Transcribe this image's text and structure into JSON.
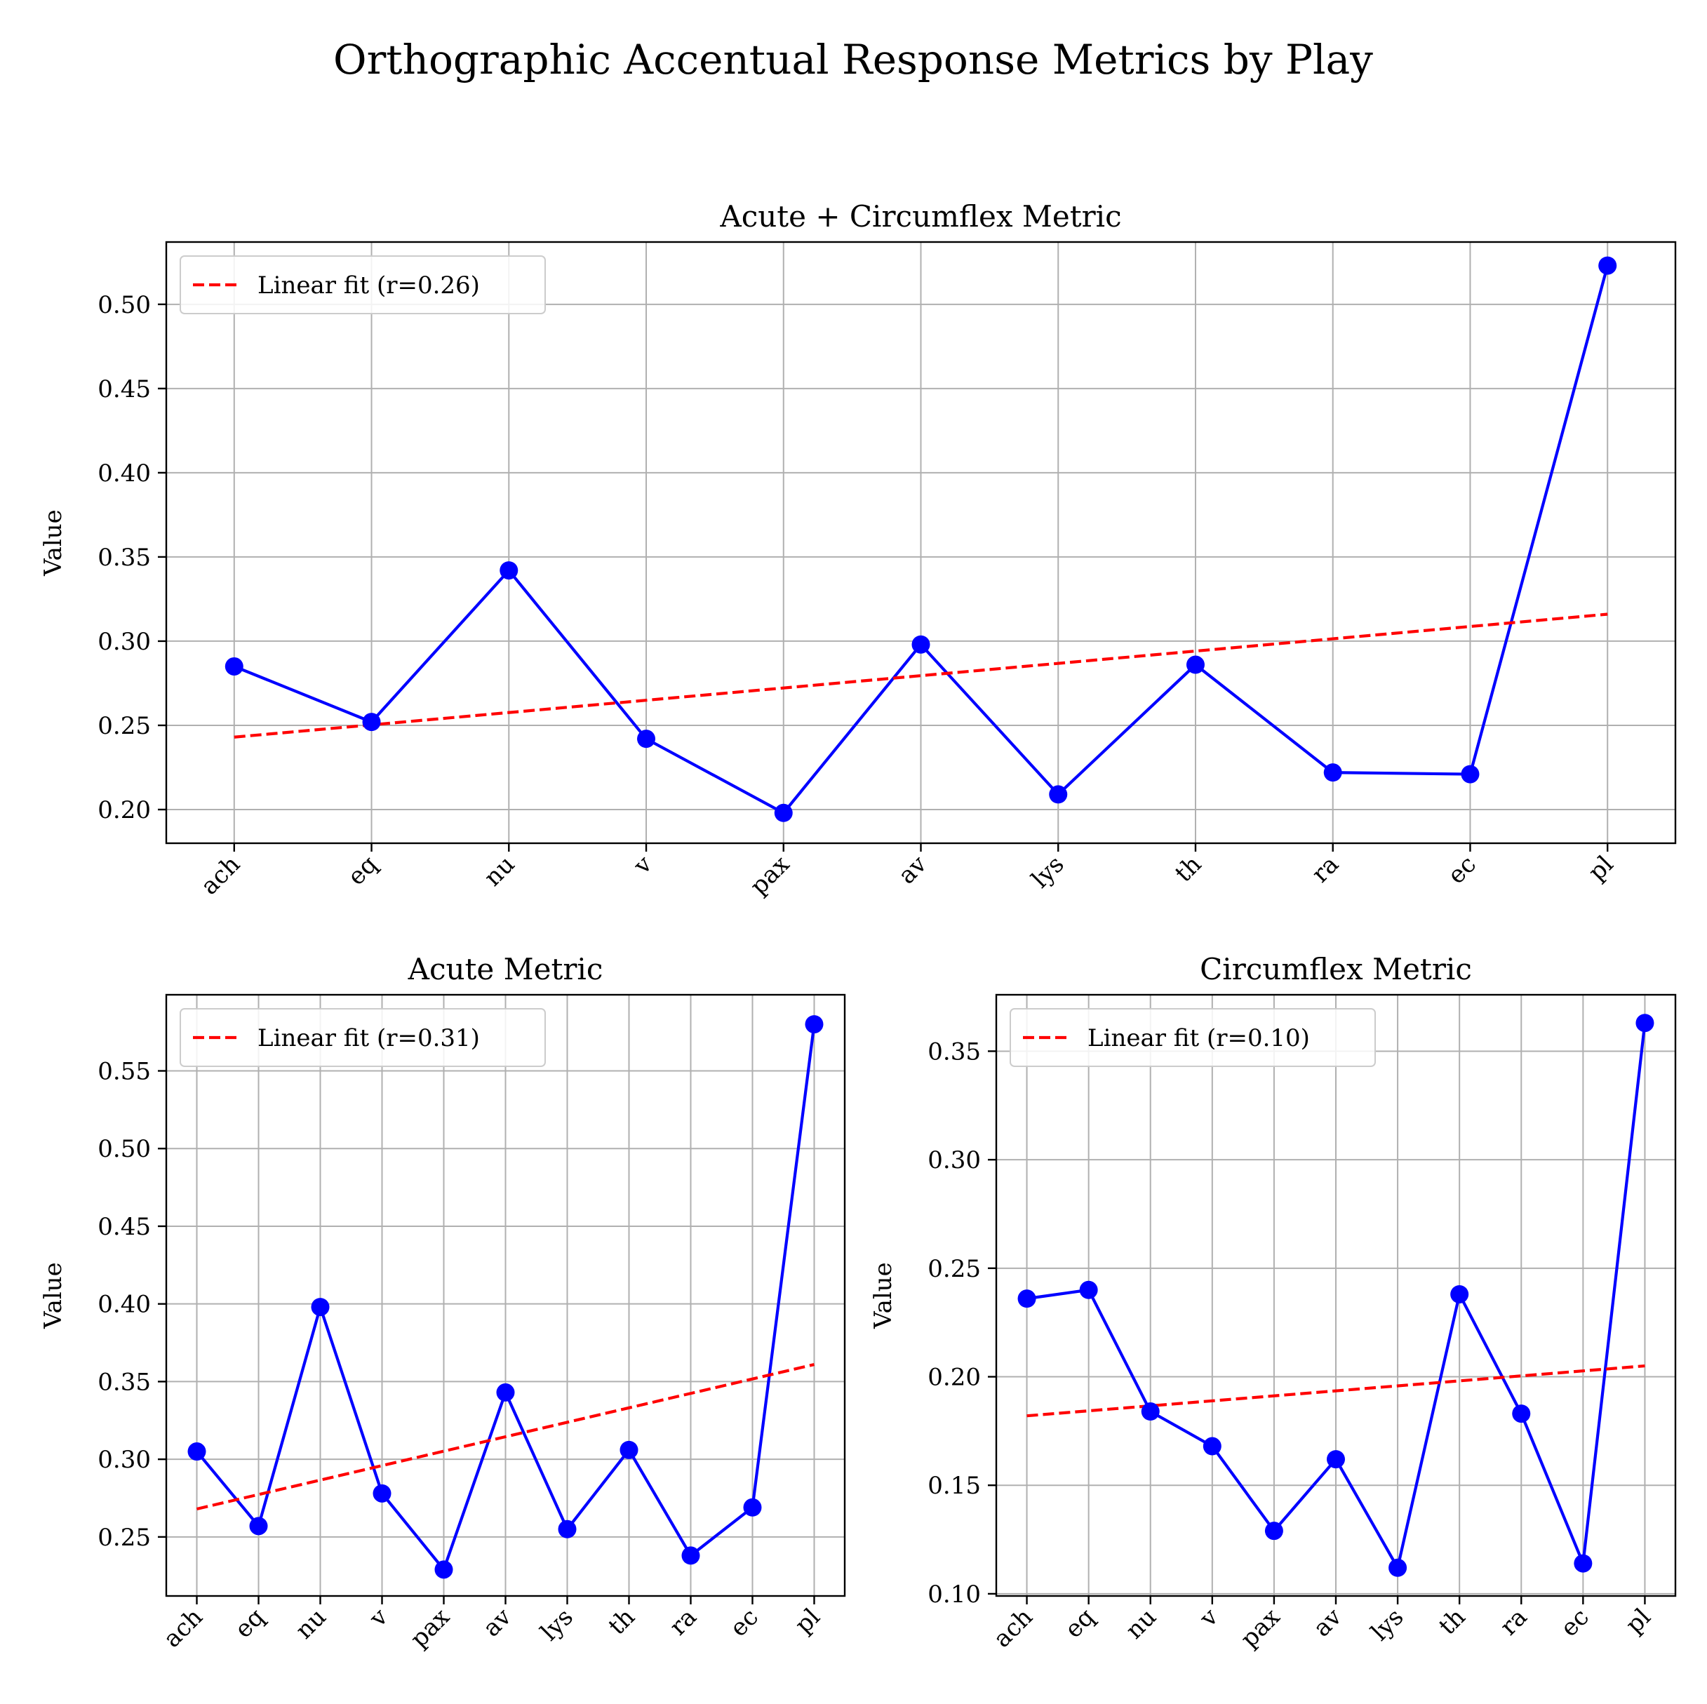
{
  "figure": {
    "title": "Orthographic Accentual Response Metrics by Play"
  },
  "chart_data": [
    {
      "type": "line",
      "title": "Acute + Circumflex Metric",
      "xlabel": "",
      "ylabel": "Value",
      "categories": [
        "ach",
        "eq",
        "nu",
        "v",
        "pax",
        "av",
        "lys",
        "th",
        "ra",
        "ec",
        "pl"
      ],
      "values": [
        0.285,
        0.252,
        0.342,
        0.242,
        0.198,
        0.298,
        0.209,
        0.286,
        0.222,
        0.221,
        0.523
      ],
      "fit": {
        "label": "Linear fit (r=0.26)",
        "start": 0.243,
        "end": 0.316
      },
      "ylim": [
        0.18,
        0.537
      ],
      "yticks": [
        0.2,
        0.25,
        0.3,
        0.35,
        0.4,
        0.45,
        0.5
      ],
      "ytick_labels": [
        "0.20",
        "0.25",
        "0.30",
        "0.35",
        "0.40",
        "0.45",
        "0.50"
      ],
      "grid": true,
      "legend": "upper-left",
      "colors": {
        "series": "#0000ff",
        "fit": "#ff0000"
      }
    },
    {
      "type": "line",
      "title": "Acute Metric",
      "xlabel": "",
      "ylabel": "Value",
      "categories": [
        "ach",
        "eq",
        "nu",
        "v",
        "pax",
        "av",
        "lys",
        "th",
        "ra",
        "ec",
        "pl"
      ],
      "values": [
        0.305,
        0.257,
        0.398,
        0.278,
        0.229,
        0.343,
        0.255,
        0.306,
        0.238,
        0.269,
        0.58
      ],
      "fit": {
        "label": "Linear fit (r=0.31)",
        "start": 0.268,
        "end": 0.361
      },
      "ylim": [
        0.212,
        0.599
      ],
      "yticks": [
        0.25,
        0.3,
        0.35,
        0.4,
        0.45,
        0.5,
        0.55
      ],
      "ytick_labels": [
        "0.25",
        "0.30",
        "0.35",
        "0.40",
        "0.45",
        "0.50",
        "0.55"
      ],
      "grid": true,
      "legend": "upper-left",
      "colors": {
        "series": "#0000ff",
        "fit": "#ff0000"
      }
    },
    {
      "type": "line",
      "title": "Circumflex Metric",
      "xlabel": "",
      "ylabel": "Value",
      "categories": [
        "ach",
        "eq",
        "nu",
        "v",
        "pax",
        "av",
        "lys",
        "th",
        "ra",
        "ec",
        "pl"
      ],
      "values": [
        0.236,
        0.24,
        0.184,
        0.168,
        0.129,
        0.162,
        0.112,
        0.238,
        0.183,
        0.114,
        0.363
      ],
      "fit": {
        "label": "Linear fit (r=0.10)",
        "start": 0.182,
        "end": 0.205
      },
      "ylim": [
        0.099,
        0.376
      ],
      "yticks": [
        0.1,
        0.15,
        0.2,
        0.25,
        0.3,
        0.35
      ],
      "ytick_labels": [
        "0.10",
        "0.15",
        "0.20",
        "0.25",
        "0.30",
        "0.35"
      ],
      "grid": true,
      "legend": "upper-left",
      "colors": {
        "series": "#0000ff",
        "fit": "#ff0000"
      }
    }
  ]
}
